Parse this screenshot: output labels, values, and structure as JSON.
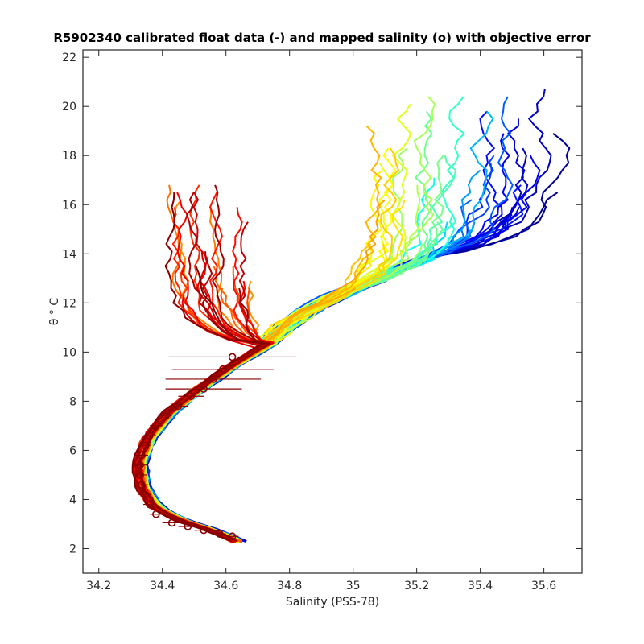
{
  "chart_data": {
    "type": "line",
    "title": "R5902340 calibrated float data (-) and mapped salinity (o) with objective error",
    "xlabel": "Salinity (PSS-78)",
    "ylabel": "θ ° C",
    "xlim": [
      34.15,
      35.72
    ],
    "ylim": [
      1.0,
      22.3
    ],
    "xticks": [
      34.2,
      34.4,
      34.6,
      34.8,
      35,
      35.2,
      35.4,
      35.6
    ],
    "yticks": [
      2,
      4,
      6,
      8,
      10,
      12,
      14,
      16,
      18,
      20,
      22
    ],
    "grid": false,
    "legend": "none",
    "colormap": "jet",
    "colormap_stops": [
      "#00008f",
      "#0000ff",
      "#0080ff",
      "#00ffff",
      "#80ff80",
      "#ffff00",
      "#ff8000",
      "#ff0000",
      "#800000"
    ],
    "series_profile_count": 90,
    "series_shape": {
      "deep_branch_theta_salinity": [
        [
          2.3,
          34.64
        ],
        [
          2.7,
          34.57
        ],
        [
          3.2,
          34.45
        ],
        [
          3.7,
          34.38
        ],
        [
          4.5,
          34.34
        ],
        [
          5.5,
          34.33
        ],
        [
          6.5,
          34.36
        ],
        [
          7.5,
          34.42
        ],
        [
          8.5,
          34.52
        ],
        [
          9.5,
          34.63
        ],
        [
          10.5,
          34.76
        ],
        [
          11.5,
          34.92
        ],
        [
          12.5,
          35.1
        ],
        [
          13.5,
          35.3
        ],
        [
          14.5,
          35.5
        ]
      ],
      "surface_spread": {
        "blue_profiles_salinity_range": [
          35.0,
          35.6
        ],
        "red_profiles_salinity_range": [
          34.4,
          34.7
        ],
        "max_theta": 21.4
      }
    },
    "mapped_salinity_points": [
      {
        "theta": 2.5,
        "salinity": 34.62,
        "error": 0.02
      },
      {
        "theta": 2.6,
        "salinity": 34.58,
        "error": 0.02
      },
      {
        "theta": 2.75,
        "salinity": 34.53,
        "error": 0.03
      },
      {
        "theta": 2.9,
        "salinity": 34.48,
        "error": 0.03
      },
      {
        "theta": 3.05,
        "salinity": 34.43,
        "error": 0.03
      },
      {
        "theta": 3.4,
        "salinity": 34.38,
        "error": 0.02
      },
      {
        "theta": 3.8,
        "salinity": 34.36,
        "error": 0.02
      },
      {
        "theta": 4.2,
        "salinity": 34.345,
        "error": 0.02
      },
      {
        "theta": 4.6,
        "salinity": 34.335,
        "error": 0.02
      },
      {
        "theta": 5.0,
        "salinity": 34.33,
        "error": 0.02
      },
      {
        "theta": 5.4,
        "salinity": 34.33,
        "error": 0.02
      },
      {
        "theta": 5.8,
        "salinity": 34.335,
        "error": 0.02
      },
      {
        "theta": 6.2,
        "salinity": 34.345,
        "error": 0.02
      },
      {
        "theta": 6.6,
        "salinity": 34.36,
        "error": 0.02
      },
      {
        "theta": 7.0,
        "salinity": 34.38,
        "error": 0.02
      },
      {
        "theta": 7.4,
        "salinity": 34.41,
        "error": 0.02
      },
      {
        "theta": 7.8,
        "salinity": 34.45,
        "error": 0.03
      },
      {
        "theta": 8.2,
        "salinity": 34.49,
        "error": 0.04
      },
      {
        "theta": 8.5,
        "salinity": 34.53,
        "error": 0.12
      },
      {
        "theta": 8.9,
        "salinity": 34.56,
        "error": 0.15
      },
      {
        "theta": 9.3,
        "salinity": 34.59,
        "error": 0.16
      },
      {
        "theta": 9.8,
        "salinity": 34.62,
        "error": 0.2
      }
    ]
  }
}
